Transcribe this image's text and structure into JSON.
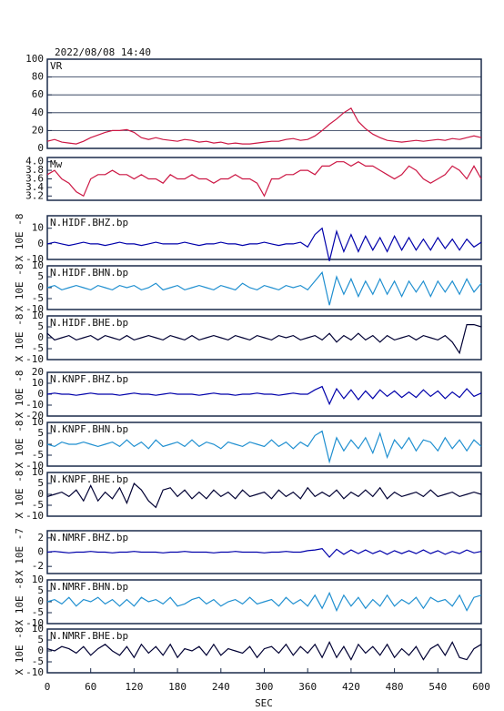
{
  "chart_data": {
    "type": "line",
    "title": "2022/08/08  14:40",
    "xlabel": "SEC",
    "x": [
      0,
      10,
      20,
      30,
      40,
      50,
      60,
      70,
      80,
      90,
      100,
      110,
      120,
      130,
      140,
      150,
      160,
      170,
      180,
      190,
      200,
      210,
      220,
      230,
      240,
      250,
      260,
      270,
      280,
      290,
      300,
      310,
      320,
      330,
      340,
      350,
      360,
      370,
      380,
      390,
      400,
      410,
      420,
      430,
      440,
      450,
      460,
      470,
      480,
      490,
      500,
      510,
      520,
      530,
      540,
      550,
      560,
      570,
      580,
      590,
      600
    ],
    "xlim": [
      0,
      600
    ],
    "xticks": [
      0,
      60,
      120,
      180,
      240,
      300,
      360,
      420,
      480,
      540,
      600
    ],
    "panels": [
      {
        "ylim": [
          0,
          100
        ],
        "yticks": [
          0,
          20,
          40,
          60,
          80,
          100
        ],
        "grid": true,
        "series": [
          {
            "name": "VR",
            "color": "#cc1744",
            "values": [
              8,
              10,
              7,
              6,
              5,
              8,
              12,
              15,
              18,
              20,
              20,
              21,
              18,
              12,
              10,
              12,
              10,
              9,
              8,
              10,
              9,
              7,
              8,
              6,
              7,
              5,
              6,
              5,
              5,
              6,
              7,
              8,
              8,
              10,
              11,
              9,
              10,
              14,
              20,
              27,
              33,
              40,
              45,
              30,
              22,
              16,
              12,
              9,
              8,
              7,
              8,
              9,
              8,
              9,
              10,
              9,
              11,
              10,
              12,
              14,
              12
            ]
          }
        ]
      },
      {
        "ylim": [
          3.1,
          4.1
        ],
        "yticks": [
          {
            "value": 3.2,
            "label": "3.2"
          },
          {
            "value": 3.4,
            "label": "3.4"
          },
          {
            "value": 3.6,
            "label": "3.6"
          },
          {
            "value": 3.8,
            "label": "3.8"
          },
          {
            "value": 4,
            "label": "4.0"
          }
        ],
        "grid": false,
        "series": [
          {
            "name": "Mw",
            "color": "#cc1744",
            "values": [
              3.7,
              3.8,
              3.6,
              3.5,
              3.3,
              3.2,
              3.6,
              3.7,
              3.7,
              3.8,
              3.7,
              3.7,
              3.6,
              3.7,
              3.6,
              3.6,
              3.5,
              3.7,
              3.6,
              3.6,
              3.7,
              3.6,
              3.6,
              3.5,
              3.6,
              3.6,
              3.7,
              3.6,
              3.6,
              3.5,
              3.2,
              3.6,
              3.6,
              3.7,
              3.7,
              3.8,
              3.8,
              3.7,
              3.9,
              3.9,
              4.0,
              4.0,
              3.9,
              4.0,
              3.9,
              3.9,
              3.8,
              3.7,
              3.6,
              3.7,
              3.9,
              3.8,
              3.6,
              3.5,
              3.6,
              3.7,
              3.9,
              3.8,
              3.6,
              3.9,
              3.6
            ]
          }
        ]
      },
      {
        "ylabel": "X 10E -8",
        "ylim": [
          -10,
          18
        ],
        "yticks": [
          -10,
          0,
          10
        ],
        "grid": false,
        "series": [
          {
            "name": "N.HIDF.BHZ.bp",
            "color": "#0000aa",
            "values": [
              0,
              1,
              0,
              -1,
              0,
              1,
              0,
              0,
              -1,
              0,
              1,
              0,
              0,
              -1,
              0,
              1,
              0,
              0,
              0,
              1,
              0,
              -1,
              0,
              0,
              1,
              0,
              0,
              -1,
              0,
              0,
              1,
              0,
              -1,
              0,
              0,
              1,
              -2,
              6,
              10,
              -11,
              8,
              -5,
              6,
              -5,
              5,
              -4,
              4,
              -5,
              5,
              -4,
              4,
              -4,
              3,
              -4,
              4,
              -3,
              3,
              -4,
              3,
              -2,
              1
            ]
          }
        ]
      },
      {
        "ylabel": "X 10E -8",
        "ylim": [
          -10,
          10
        ],
        "yticks": [
          -10,
          -5,
          0,
          5,
          10
        ],
        "grid": false,
        "series": [
          {
            "name": "N.HIDF.BHN.bp",
            "color": "#1f8fd0",
            "values": [
              0,
              1,
              -1,
              0,
              1,
              0,
              -1,
              1,
              0,
              -1,
              1,
              0,
              1,
              -1,
              0,
              2,
              -1,
              0,
              1,
              -1,
              0,
              1,
              0,
              -1,
              1,
              0,
              -1,
              2,
              0,
              -1,
              1,
              0,
              -1,
              1,
              0,
              1,
              -1,
              3,
              7,
              -8,
              5,
              -3,
              4,
              -4,
              3,
              -3,
              4,
              -3,
              3,
              -4,
              3,
              -2,
              3,
              -4,
              3,
              -2,
              3,
              -3,
              4,
              -2,
              2
            ]
          }
        ]
      },
      {
        "ylabel": "X 10E -8",
        "ylim": [
          -10,
          10
        ],
        "yticks": [
          -10,
          -5,
          0,
          5,
          10
        ],
        "grid": false,
        "series": [
          {
            "name": "N.HIDF.BHE.bp",
            "color": "#000033",
            "values": [
              2,
              -1,
              0,
              1,
              -1,
              0,
              1,
              -1,
              1,
              0,
              -1,
              1,
              -1,
              0,
              1,
              0,
              -1,
              1,
              0,
              -1,
              1,
              -1,
              0,
              1,
              0,
              -1,
              1,
              0,
              -1,
              1,
              0,
              -1,
              1,
              0,
              1,
              -1,
              0,
              1,
              -1,
              2,
              -2,
              1,
              -1,
              2,
              -1,
              1,
              -2,
              1,
              -1,
              0,
              1,
              -1,
              1,
              0,
              -1,
              1,
              -2,
              -7,
              6,
              6,
              5
            ]
          }
        ]
      },
      {
        "ylabel": "X 10E -8",
        "ylim": [
          -20,
          20
        ],
        "yticks": [
          -20,
          -10,
          0,
          10,
          20
        ],
        "grid": false,
        "series": [
          {
            "name": "N.KNPF.BHZ.bp",
            "color": "#0000aa",
            "values": [
              0,
              1,
              0,
              0,
              -1,
              0,
              1,
              0,
              0,
              0,
              -1,
              0,
              1,
              0,
              0,
              -1,
              0,
              1,
              0,
              0,
              0,
              -1,
              0,
              1,
              0,
              0,
              -1,
              0,
              0,
              1,
              0,
              0,
              -1,
              0,
              1,
              0,
              0,
              4,
              7,
              -9,
              5,
              -4,
              4,
              -5,
              3,
              -4,
              4,
              -2,
              3,
              -3,
              2,
              -3,
              4,
              -2,
              3,
              -4,
              2,
              -3,
              5,
              -2,
              1
            ]
          }
        ]
      },
      {
        "ylabel": "X 10E -8",
        "ylim": [
          -10,
          10
        ],
        "yticks": [
          -10,
          -5,
          0,
          5,
          10
        ],
        "grid": false,
        "series": [
          {
            "name": "N.KNPF.BHN.bp",
            "color": "#1f8fd0",
            "values": [
              0,
              -1,
              1,
              0,
              0,
              1,
              0,
              -1,
              0,
              1,
              -1,
              2,
              -1,
              1,
              -2,
              2,
              -1,
              0,
              1,
              -1,
              2,
              -1,
              1,
              0,
              -2,
              1,
              0,
              -1,
              1,
              0,
              -1,
              2,
              -1,
              1,
              -2,
              1,
              -1,
              4,
              6,
              -8,
              3,
              -3,
              2,
              -2,
              3,
              -4,
              5,
              -6,
              2,
              -2,
              3,
              -3,
              2,
              1,
              -3,
              3,
              -2,
              2,
              -3,
              2,
              -1
            ]
          }
        ]
      },
      {
        "ylabel": "X 10E -8",
        "ylim": [
          -10,
          10
        ],
        "yticks": [
          -10,
          -5,
          0,
          5,
          10
        ],
        "grid": false,
        "series": [
          {
            "name": "N.KNPF.BHE.bp",
            "color": "#000033",
            "values": [
              -1,
              0,
              1,
              -1,
              2,
              -3,
              4,
              -3,
              1,
              -2,
              3,
              -4,
              5,
              2,
              -3,
              -6,
              2,
              3,
              -1,
              2,
              -2,
              1,
              -2,
              2,
              -1,
              1,
              -2,
              2,
              -1,
              0,
              1,
              -2,
              2,
              -1,
              1,
              -2,
              3,
              -1,
              1,
              -1,
              2,
              -2,
              1,
              -1,
              2,
              -1,
              3,
              -2,
              1,
              -1,
              0,
              1,
              -1,
              2,
              -1,
              0,
              1,
              -1,
              0,
              1,
              0
            ]
          }
        ]
      },
      {
        "ylabel": "X 10E -7",
        "ylim": [
          -3,
          3
        ],
        "yticks": [
          -2,
          0,
          2
        ],
        "grid": false,
        "series": [
          {
            "name": "N.NMRF.BHZ.bp",
            "color": "#0000aa",
            "values": [
              0,
              0.1,
              0,
              -0.1,
              0,
              0,
              0.1,
              0,
              0,
              -0.1,
              0,
              0,
              0.1,
              0,
              0,
              0,
              -0.1,
              0,
              0,
              0.1,
              0,
              0,
              0,
              -0.1,
              0,
              0,
              0.1,
              0,
              0,
              0,
              -0.1,
              0,
              0,
              0.1,
              0,
              0,
              0.2,
              0.3,
              0.5,
              -0.7,
              0.4,
              -0.3,
              0.3,
              -0.2,
              0.3,
              -0.2,
              0.2,
              -0.3,
              0.2,
              -0.2,
              0.2,
              -0.2,
              0.3,
              -0.2,
              0.2,
              -0.3,
              0.1,
              -0.2,
              0.3,
              -0.1,
              0.1
            ]
          }
        ]
      },
      {
        "ylabel": "X 10E -8",
        "ylim": [
          -10,
          10
        ],
        "yticks": [
          -10,
          -5,
          0,
          5,
          10
        ],
        "grid": false,
        "series": [
          {
            "name": "N.NMRF.BHN.bp",
            "color": "#1f8fd0",
            "values": [
              0,
              1,
              -1,
              2,
              -2,
              1,
              0,
              2,
              -1,
              1,
              -2,
              1,
              -2,
              2,
              0,
              1,
              -1,
              2,
              -2,
              -1,
              1,
              2,
              -1,
              1,
              -2,
              0,
              1,
              -1,
              2,
              -1,
              0,
              1,
              -2,
              2,
              -1,
              1,
              -2,
              3,
              -3,
              4,
              -4,
              3,
              -2,
              2,
              -3,
              1,
              -2,
              3,
              -2,
              1,
              -1,
              2,
              -3,
              2,
              0,
              1,
              -2,
              3,
              -4,
              2,
              3
            ]
          }
        ]
      },
      {
        "ylabel": "X 10E -8",
        "ylim": [
          -10,
          10
        ],
        "yticks": [
          -10,
          -5,
          0,
          5,
          10
        ],
        "grid": false,
        "series": [
          {
            "name": "N.NMRF.BHE.bp",
            "color": "#000033",
            "values": [
              1,
              0,
              2,
              1,
              -1,
              2,
              -2,
              1,
              3,
              0,
              -2,
              2,
              -3,
              3,
              -1,
              2,
              -2,
              3,
              -3,
              1,
              0,
              2,
              -2,
              3,
              -2,
              1,
              0,
              -1,
              2,
              -3,
              1,
              2,
              -1,
              3,
              -2,
              2,
              -1,
              3,
              -3,
              4,
              -3,
              2,
              -4,
              3,
              -1,
              2,
              -2,
              3,
              -3,
              1,
              -2,
              2,
              -4,
              1,
              3,
              -2,
              4,
              -3,
              -4,
              1,
              3
            ]
          }
        ]
      }
    ]
  }
}
